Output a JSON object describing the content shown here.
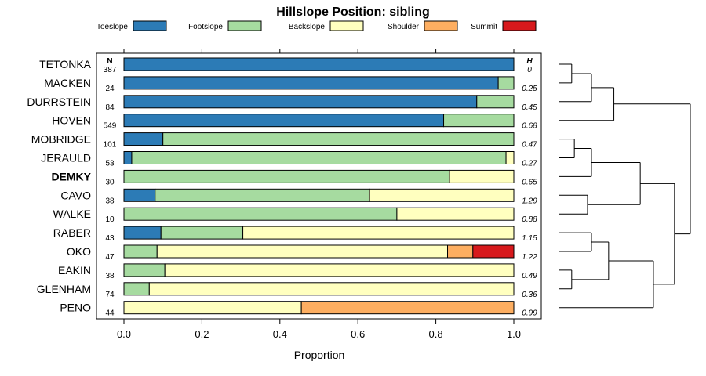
{
  "chart_data": {
    "type": "bar",
    "stacked": true,
    "orientation": "horizontal",
    "title": "Hillslope Position: sibling",
    "xlabel": "Proportion",
    "xlim": [
      0,
      1
    ],
    "xticks": [
      "0.0",
      "0.2",
      "0.4",
      "0.6",
      "0.8",
      "1.0"
    ],
    "xtick_values": [
      0,
      0.2,
      0.4,
      0.6,
      0.8,
      1.0
    ],
    "n_header": "N",
    "h_header": "H",
    "legend": [
      {
        "name": "Toeslope",
        "color": "#2c7bb6"
      },
      {
        "name": "Footslope",
        "color": "#a6dba0"
      },
      {
        "name": "Backslope",
        "color": "#ffffbf"
      },
      {
        "name": "Shoulder",
        "color": "#fdae61"
      },
      {
        "name": "Summit",
        "color": "#d7191c"
      }
    ],
    "categories": [
      "TETONKA",
      "MACKEN",
      "DURRSTEIN",
      "HOVEN",
      "MOBRIDGE",
      "JERAULD",
      "DEMKY",
      "CAVO",
      "WALKE",
      "RABER",
      "OKO",
      "EAKIN",
      "GLENHAM",
      "PENO"
    ],
    "highlight": "DEMKY",
    "n": [
      "387",
      "24",
      "84",
      "549",
      "101",
      "53",
      "30",
      "38",
      "10",
      "43",
      "47",
      "38",
      "74",
      "44"
    ],
    "h": [
      "0",
      "0.25",
      "0.45",
      "0.68",
      "0.47",
      "0.27",
      "0.65",
      "1.29",
      "0.88",
      "1.15",
      "1.22",
      "0.49",
      "0.36",
      "0.99"
    ],
    "series": [
      {
        "name": "Toeslope",
        "values": [
          1.0,
          0.96,
          0.905,
          0.82,
          0.1,
          0.02,
          0.0,
          0.08,
          0.0,
          0.095,
          0.0,
          0.0,
          0.0,
          0.0
        ]
      },
      {
        "name": "Footslope",
        "values": [
          0.0,
          0.04,
          0.095,
          0.18,
          0.9,
          0.96,
          0.835,
          0.55,
          0.7,
          0.21,
          0.085,
          0.105,
          0.065,
          0.0
        ]
      },
      {
        "name": "Backslope",
        "values": [
          0.0,
          0.0,
          0.0,
          0.0,
          0.0,
          0.02,
          0.165,
          0.37,
          0.3,
          0.695,
          0.745,
          0.895,
          0.935,
          0.455
        ]
      },
      {
        "name": "Shoulder",
        "values": [
          0.0,
          0.0,
          0.0,
          0.0,
          0.0,
          0.0,
          0.0,
          0.0,
          0.0,
          0.0,
          0.065,
          0.0,
          0.0,
          0.545
        ]
      },
      {
        "name": "Summit",
        "values": [
          0.0,
          0.0,
          0.0,
          0.0,
          0.0,
          0.0,
          0.0,
          0.0,
          0.0,
          0.0,
          0.105,
          0.0,
          0.0,
          0.0
        ]
      }
    ],
    "dendrogram": {
      "leaves": [
        "TETONKA",
        "MACKEN",
        "DURRSTEIN",
        "HOVEN",
        "MOBRIDGE",
        "JERAULD",
        "DEMKY",
        "CAVO",
        "WALKE",
        "RABER",
        "OKO",
        "EAKIN",
        "GLENHAM",
        "PENO"
      ],
      "merges": [
        {
          "left": "TETONKA",
          "right": "MACKEN",
          "height": 0.1
        },
        {
          "left": "c0",
          "right": "DURRSTEIN",
          "height": 0.25
        },
        {
          "left": "c1",
          "right": "HOVEN",
          "height": 0.42
        },
        {
          "left": "MOBRIDGE",
          "right": "JERAULD",
          "height": 0.12
        },
        {
          "left": "c3",
          "right": "DEMKY",
          "height": 0.25
        },
        {
          "left": "CAVO",
          "right": "WALKE",
          "height": 0.22
        },
        {
          "left": "c4",
          "right": "c5",
          "height": 0.62
        },
        {
          "left": "RABER",
          "right": "OKO",
          "height": 0.25
        },
        {
          "left": "EAKIN",
          "right": "GLENHAM",
          "height": 0.1
        },
        {
          "left": "c7",
          "right": "c8",
          "height": 0.38
        },
        {
          "left": "c9",
          "right": "PENO",
          "height": 0.72
        },
        {
          "left": "c6",
          "right": "c10",
          "height": 0.88
        },
        {
          "left": "c2",
          "right": "c11",
          "height": 1.0
        }
      ]
    }
  }
}
